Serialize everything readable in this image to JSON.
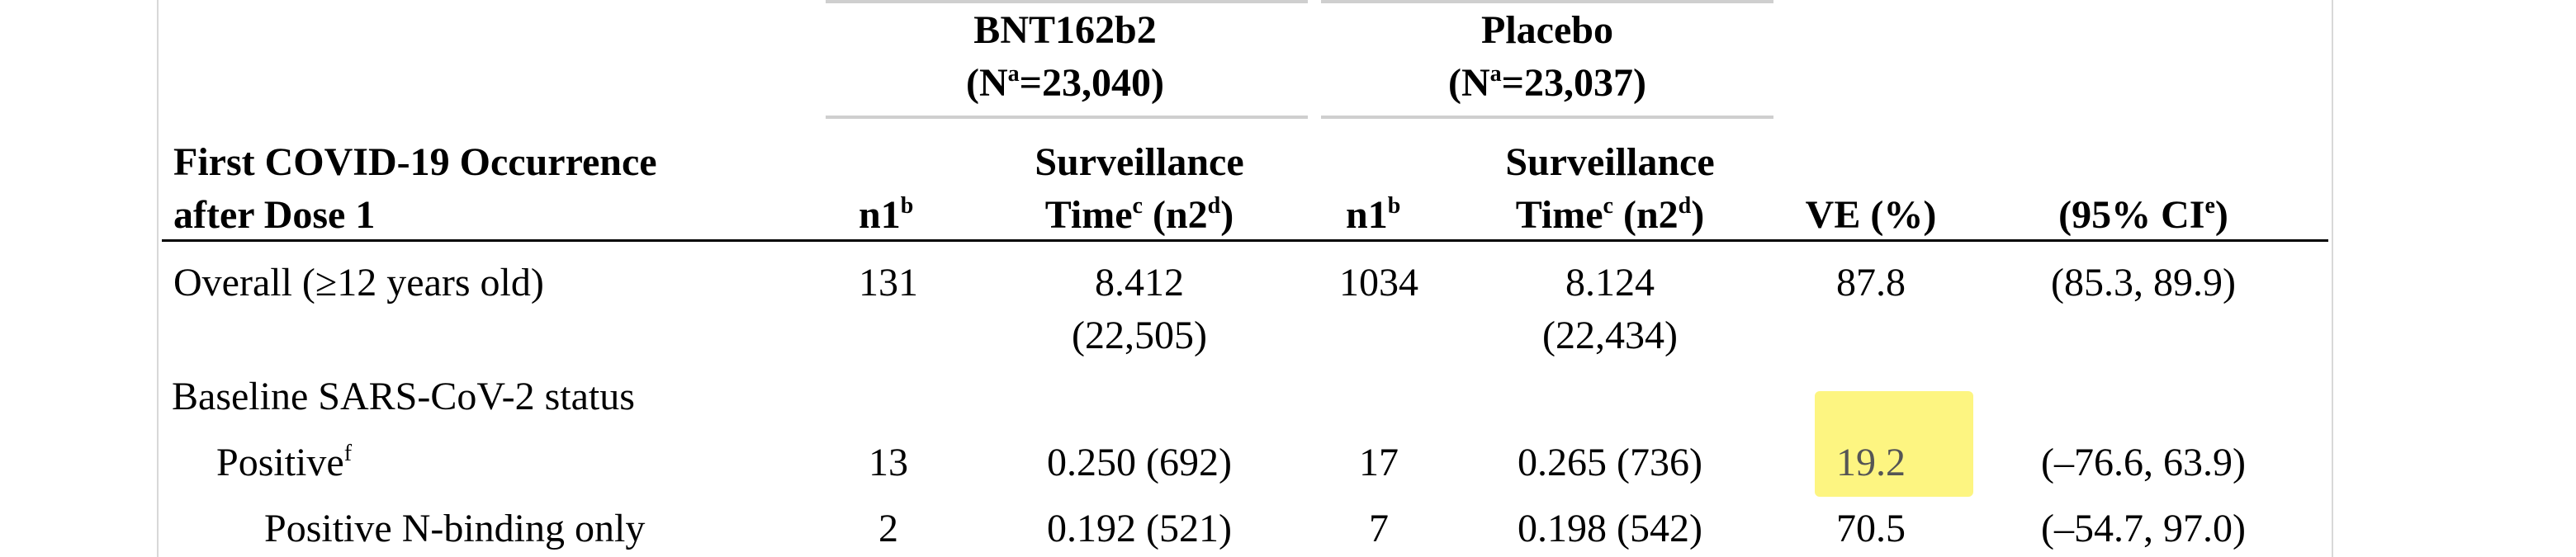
{
  "table": {
    "group_headers": [
      {
        "name": "BNT162b2",
        "n": "(N",
        "n_sup": "a",
        "n_val": "=23,040)"
      },
      {
        "name": "Placebo",
        "n": "(N",
        "n_sup": "a",
        "n_val": "=23,037)"
      }
    ],
    "columns": {
      "first_col_line1": "First COVID-19 Occurrence",
      "first_col_line2": "after Dose 1",
      "n1": "n1",
      "n1_sup": "b",
      "surv_line1": "Surveillance",
      "surv_line2": "Time",
      "surv_sup1": "c",
      "surv_mid": " (n2",
      "surv_sup2": "d",
      "surv_end": ")",
      "ve": "VE (%)",
      "ci": "(95% CI",
      "ci_sup": "e",
      "ci_end": ")"
    },
    "rows": [
      {
        "label": "Overall (≥12 years old)",
        "bnt_n1": "131",
        "bnt_time": "8.412",
        "bnt_n2": "(22,505)",
        "pbo_n1": "1034",
        "pbo_time": "8.124",
        "pbo_n2": "(22,434)",
        "ve": "87.8",
        "ci": "(85.3, 89.9)"
      },
      {
        "label": "Baseline SARS-CoV-2 status"
      },
      {
        "label": "Positive",
        "label_sup": "f",
        "bnt_n1": "13",
        "bnt_time": "0.250 (692)",
        "pbo_n1": "17",
        "pbo_time": "0.265 (736)",
        "ve": "19.2",
        "ci": "(–76.6, 63.9)"
      },
      {
        "label": "Positive N-binding only",
        "bnt_n1": "2",
        "bnt_time": "0.192 (521)",
        "pbo_n1": "7",
        "pbo_time": "0.198 (542)",
        "ve": "70.5",
        "ci": "(–54.7, 97.0)"
      }
    ],
    "highlight_color": "#fdf36b"
  }
}
